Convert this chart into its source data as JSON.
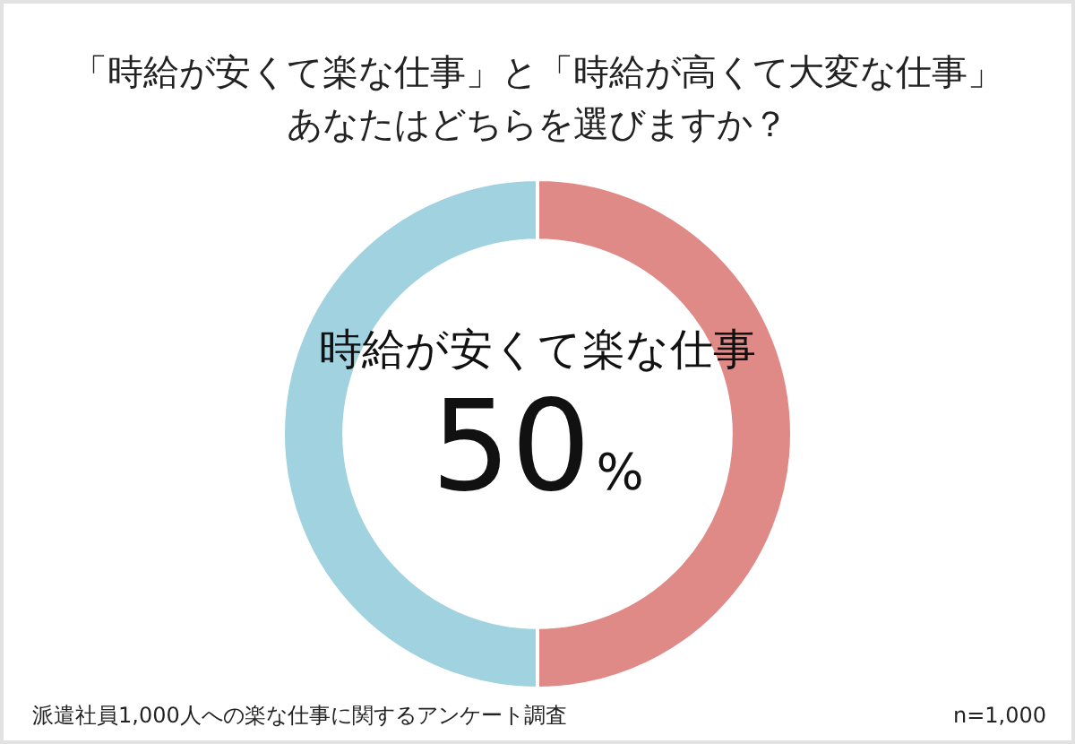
{
  "chart_data": {
    "type": "donut",
    "title": "「時給が安くて楽な仕事」と「時給が高くて大変な仕事」あなたはどちらを選びますか？",
    "categories": [
      "時給が安くて楽な仕事",
      null
    ],
    "values": [
      50,
      50
    ],
    "colors": [
      "#e08a88",
      "#a0d2e0"
    ],
    "value_labels": [
      "50%",
      null
    ],
    "annotations": [
      "派遣社員1,000人への楽な仕事に関するアンケート調査",
      "n=1,000"
    ]
  }
}
